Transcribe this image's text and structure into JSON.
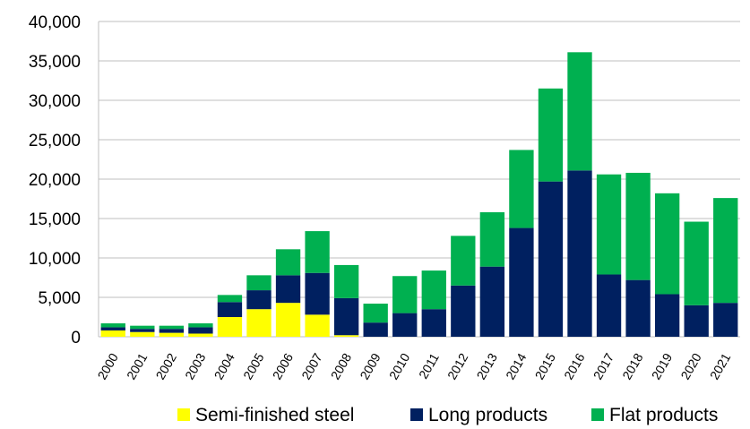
{
  "chart_data": {
    "type": "bar",
    "stacked": true,
    "categories": [
      "2000",
      "2001",
      "2002",
      "2003",
      "2004",
      "2005",
      "2006",
      "2007",
      "2008",
      "2009",
      "2010",
      "2011",
      "2012",
      "2013",
      "2014",
      "2015",
      "2016",
      "2017",
      "2018",
      "2019",
      "2020",
      "2021"
    ],
    "series": [
      {
        "name": "Semi-finished steel",
        "color": "#FFFF00",
        "values": [
          800,
          600,
          500,
          400,
          2500,
          3500,
          4300,
          2800,
          200,
          0,
          0,
          0,
          0,
          0,
          0,
          0,
          0,
          0,
          0,
          0,
          0,
          0
        ]
      },
      {
        "name": "Long products",
        "color": "#002060",
        "values": [
          400,
          400,
          500,
          800,
          1900,
          2400,
          3500,
          5300,
          4700,
          1800,
          3000,
          3500,
          6500,
          8900,
          13800,
          19700,
          21100,
          7900,
          7200,
          5400,
          4000,
          4300
        ]
      },
      {
        "name": "Flat products",
        "color": "#00B050",
        "values": [
          500,
          400,
          400,
          500,
          900,
          1900,
          3300,
          5300,
          4200,
          2400,
          4700,
          4900,
          6300,
          6900,
          9900,
          11800,
          15000,
          12700,
          13600,
          12800,
          10600,
          13300
        ]
      }
    ],
    "y_ticks": [
      "0",
      "5,000",
      "10,000",
      "15,000",
      "20,000",
      "25,000",
      "30,000",
      "35,000",
      "40,000"
    ],
    "ylim": [
      0,
      40000
    ],
    "grid": "horizontal",
    "legend_position": "bottom"
  }
}
